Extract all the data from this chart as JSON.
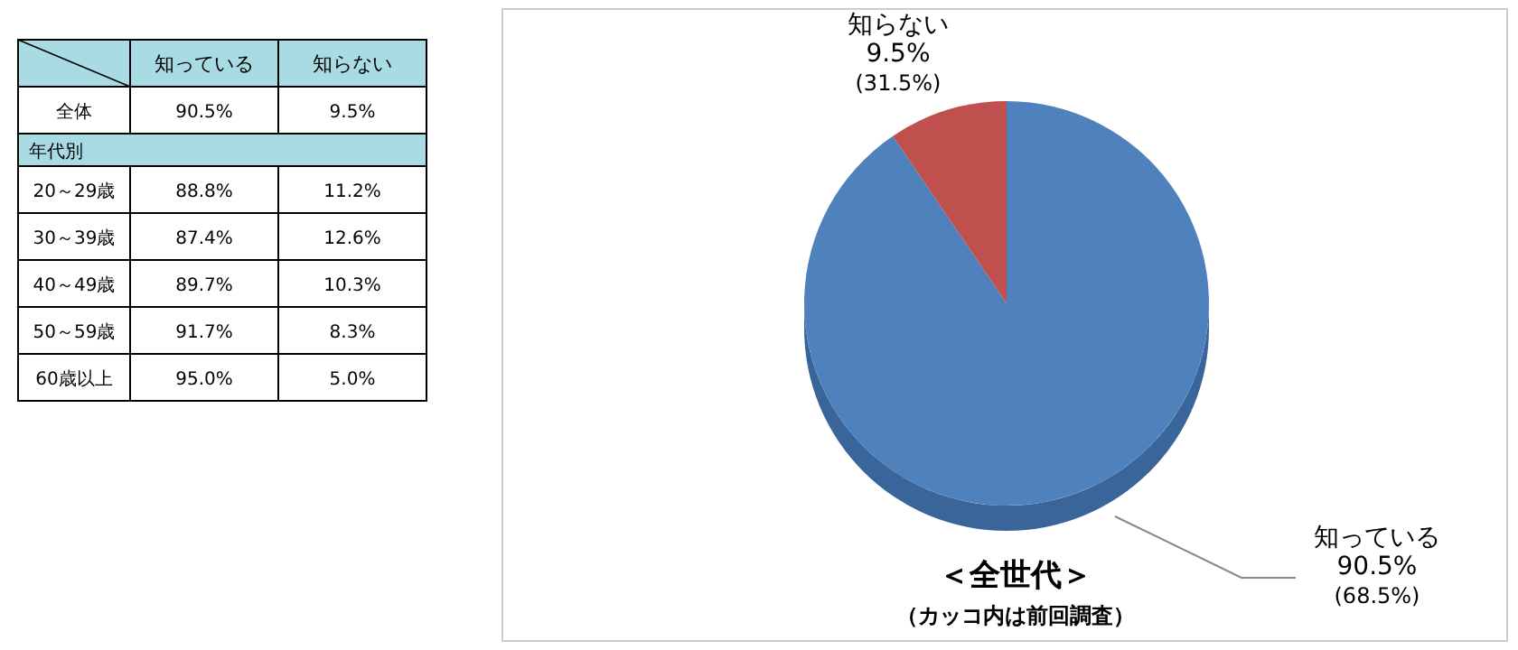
{
  "chart_data": [
    {
      "type": "other",
      "categories": [
        "知っている",
        "知らない"
      ],
      "y_categories": [
        "全体",
        "年代別",
        "20～29歳",
        "30～39歳",
        "40～49歳",
        "50～59歳",
        "60歳以上"
      ],
      "cell_labels": [
        [
          "90.5%",
          "9.5%"
        ],
        [
          null,
          null
        ],
        [
          "88.8%",
          "11.2%"
        ],
        [
          "87.4%",
          "12.6%"
        ],
        [
          "89.7%",
          "10.3%"
        ],
        [
          "91.7%",
          "8.3%"
        ],
        [
          "95.0%",
          "5.0%"
        ]
      ]
    },
    {
      "type": "pie",
      "title": "＜全世代＞",
      "subtitle": "（カッコ内は前回調査）",
      "categories": [
        "知っている",
        "知らない"
      ],
      "values": [
        90.5,
        9.5
      ],
      "colors": [
        "#4f81bd",
        "#c0504d"
      ],
      "value_labels": [
        "90.5%\n(68.5%)",
        "9.5%\n(31.5%)"
      ]
    }
  ]
}
